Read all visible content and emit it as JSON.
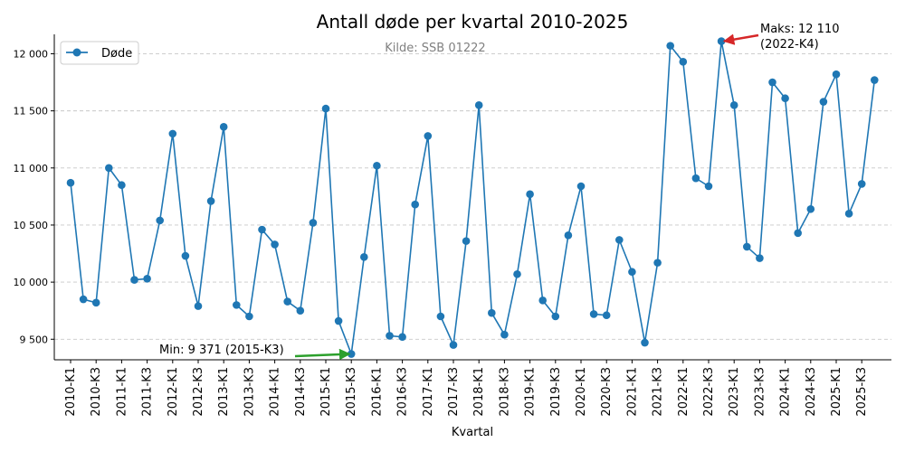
{
  "chart_data": {
    "type": "line",
    "title": "Antall døde per kvartal 2010-2025",
    "subtitle": "Kilde: SSB 01222",
    "xlabel": "Kvartal",
    "ylabel": "",
    "ylim": [
      9320,
      12170
    ],
    "yticks": [
      9500,
      10000,
      10500,
      11000,
      11500,
      12000
    ],
    "ytick_labels": [
      "9 500",
      "10 000",
      "10 500",
      "11 000",
      "11 500",
      "12 000"
    ],
    "grid": "horizontal dashed",
    "legend": "top-left",
    "series_color": "#1f77b4",
    "min_arrow_color": "#2ca02c",
    "max_arrow_color": "#d62728",
    "categories": [
      "2010-K1",
      "2010-K2",
      "2010-K3",
      "2010-K4",
      "2011-K1",
      "2011-K2",
      "2011-K3",
      "2011-K4",
      "2012-K1",
      "2012-K2",
      "2012-K3",
      "2012-K4",
      "2013-K1",
      "2013-K2",
      "2013-K3",
      "2013-K4",
      "2014-K1",
      "2014-K2",
      "2014-K3",
      "2014-K4",
      "2015-K1",
      "2015-K2",
      "2015-K3",
      "2015-K4",
      "2016-K1",
      "2016-K2",
      "2016-K3",
      "2016-K4",
      "2017-K1",
      "2017-K2",
      "2017-K3",
      "2017-K4",
      "2018-K1",
      "2018-K2",
      "2018-K3",
      "2018-K4",
      "2019-K1",
      "2019-K2",
      "2019-K3",
      "2019-K4",
      "2020-K1",
      "2020-K2",
      "2020-K3",
      "2020-K4",
      "2021-K1",
      "2021-K2",
      "2021-K3",
      "2021-K4",
      "2022-K1",
      "2022-K2",
      "2022-K3",
      "2022-K4",
      "2023-K1",
      "2023-K2",
      "2023-K3",
      "2023-K4",
      "2024-K1",
      "2024-K2",
      "2024-K3",
      "2024-K4",
      "2025-K1",
      "2025-K2",
      "2025-K3",
      "2025-K4"
    ],
    "x_tick_labels": [
      "2010-K1",
      "2010-K3",
      "2011-K1",
      "2011-K3",
      "2012-K1",
      "2012-K3",
      "2013-K1",
      "2013-K3",
      "2014-K1",
      "2014-K3",
      "2015-K1",
      "2015-K3",
      "2016-K1",
      "2016-K3",
      "2017-K1",
      "2017-K3",
      "2018-K1",
      "2018-K3",
      "2019-K1",
      "2019-K3",
      "2020-K1",
      "2020-K3",
      "2021-K1",
      "2021-K3",
      "2022-K1",
      "2022-K3",
      "2023-K1",
      "2023-K3",
      "2024-K1",
      "2024-K3",
      "2025-K1",
      "2025-K3"
    ],
    "series": [
      {
        "name": "Døde",
        "values": [
          10870,
          9850,
          9820,
          11000,
          10850,
          10020,
          10030,
          10540,
          11300,
          10230,
          9790,
          10710,
          11360,
          9800,
          9700,
          10460,
          10330,
          9830,
          9750,
          10520,
          11520,
          9660,
          9371,
          10220,
          11020,
          9530,
          9520,
          10680,
          11280,
          9700,
          9450,
          10360,
          11550,
          9730,
          9540,
          10070,
          10770,
          9840,
          9700,
          10410,
          10840,
          9720,
          9710,
          10370,
          10090,
          9470,
          10170,
          12070,
          11930,
          10910,
          10840,
          12110,
          11550,
          10310,
          10210,
          11750,
          11610,
          10430,
          10640,
          11580,
          11820,
          10600,
          10860,
          11770
        ]
      }
    ],
    "annotations": {
      "min": {
        "text": "Min: 9 371 (2015-K3)",
        "category": "2015-K3",
        "value": 9371
      },
      "max": {
        "line1": "Maks: 12 110",
        "line2": "(2022-K4)",
        "category": "2022-K4",
        "value": 12110
      }
    }
  }
}
